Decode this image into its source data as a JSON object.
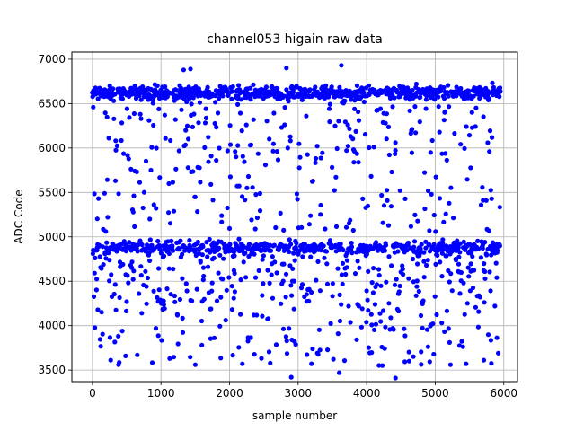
{
  "chart_data": {
    "type": "scatter",
    "title": "channel053 higain raw data",
    "xlabel": "sample number",
    "ylabel": "ADC Code",
    "xlim": [
      -300,
      6200
    ],
    "ylim": [
      3370,
      7080
    ],
    "xticks": [
      0,
      1000,
      2000,
      3000,
      4000,
      5000,
      6000
    ],
    "yticks": [
      3500,
      4000,
      4500,
      5000,
      5500,
      6000,
      6500,
      7000
    ],
    "grid": true,
    "n_samples": 5950,
    "series": [
      {
        "marker_color": "#0000ff",
        "description": "Dense scattered samples; concentrated band near 6550-6750 and dense band near 4750-5000, sparse between 5000-6500 and below 4500",
        "points_sample": [
          [
            2830,
            6900
          ],
          [
            3630,
            6930
          ],
          [
            1330,
            6880
          ],
          [
            1430,
            6890
          ],
          [
            2900,
            3420
          ],
          [
            4420,
            3410
          ],
          [
            3600,
            3470
          ],
          [
            380,
            3560
          ],
          [
            1500,
            3560
          ],
          [
            5450,
            3570
          ],
          [
            5920,
            3690
          ],
          [
            4620,
            3600
          ]
        ]
      }
    ]
  }
}
